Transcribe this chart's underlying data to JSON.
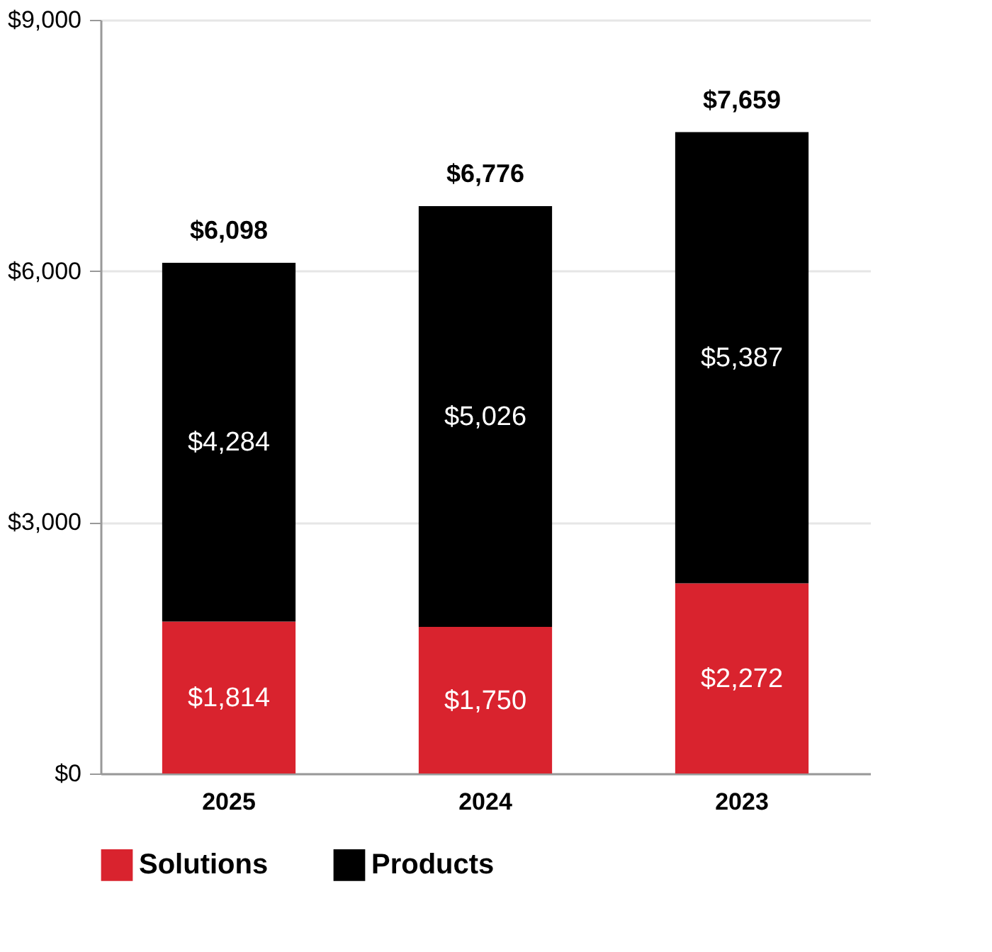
{
  "chart_data": {
    "type": "bar",
    "stacked": true,
    "categories": [
      "2025",
      "2024",
      "2023"
    ],
    "series": [
      {
        "name": "Solutions",
        "color": "#d9232e",
        "values": [
          1814,
          1750,
          2272
        ],
        "value_labels": [
          "$1,814",
          "$1,750",
          "$2,272"
        ]
      },
      {
        "name": "Products",
        "color": "#000000",
        "values": [
          4284,
          5026,
          5387
        ],
        "value_labels": [
          "$4,284",
          "$5,026",
          "$5,387"
        ]
      }
    ],
    "totals": [
      "$6,098",
      "$6,776",
      "$7,659"
    ],
    "ylim": [
      0,
      9000
    ],
    "yticks": [
      {
        "value": 0,
        "label": "$0"
      },
      {
        "value": 3000,
        "label": "$3,000"
      },
      {
        "value": 6000,
        "label": "$6,000"
      },
      {
        "value": 9000,
        "label": "$9,000"
      }
    ],
    "grid": "y",
    "legend": "bottom"
  }
}
